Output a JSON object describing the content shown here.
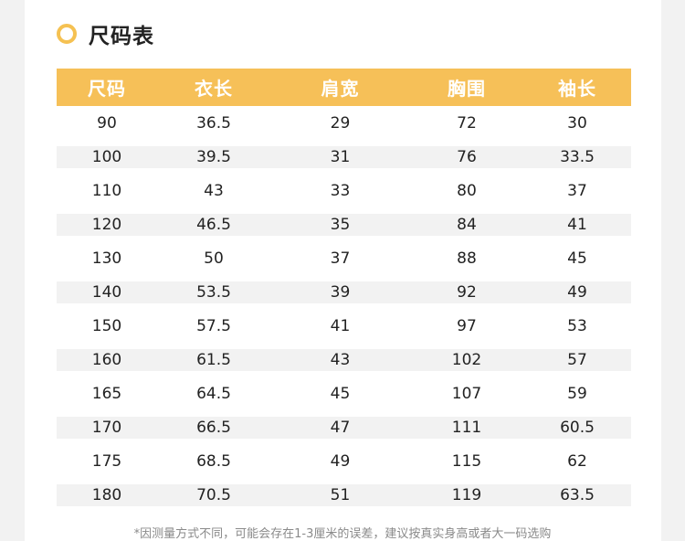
{
  "title": "尺码表",
  "colors": {
    "accent": "#f6c058",
    "row_alt": "#f2f2f2",
    "text": "#222222",
    "footnote": "#8a8a8a"
  },
  "table": {
    "headers": [
      "尺码",
      "衣长",
      "肩宽",
      "胸围",
      "袖长"
    ],
    "rows": [
      [
        "90",
        "36.5",
        "29",
        "72",
        "30"
      ],
      [
        "100",
        "39.5",
        "31",
        "76",
        "33.5"
      ],
      [
        "110",
        "43",
        "33",
        "80",
        "37"
      ],
      [
        "120",
        "46.5",
        "35",
        "84",
        "41"
      ],
      [
        "130",
        "50",
        "37",
        "88",
        "45"
      ],
      [
        "140",
        "53.5",
        "39",
        "92",
        "49"
      ],
      [
        "150",
        "57.5",
        "41",
        "97",
        "53"
      ],
      [
        "160",
        "61.5",
        "43",
        "102",
        "57"
      ],
      [
        "165",
        "64.5",
        "45",
        "107",
        "59"
      ],
      [
        "170",
        "66.5",
        "47",
        "111",
        "60.5"
      ],
      [
        "175",
        "68.5",
        "49",
        "115",
        "62"
      ],
      [
        "180",
        "70.5",
        "51",
        "119",
        "63.5"
      ]
    ]
  },
  "footnote": "*因测量方式不同，可能会存在1-3厘米的误差，建议按真实身高或者大一码选购"
}
